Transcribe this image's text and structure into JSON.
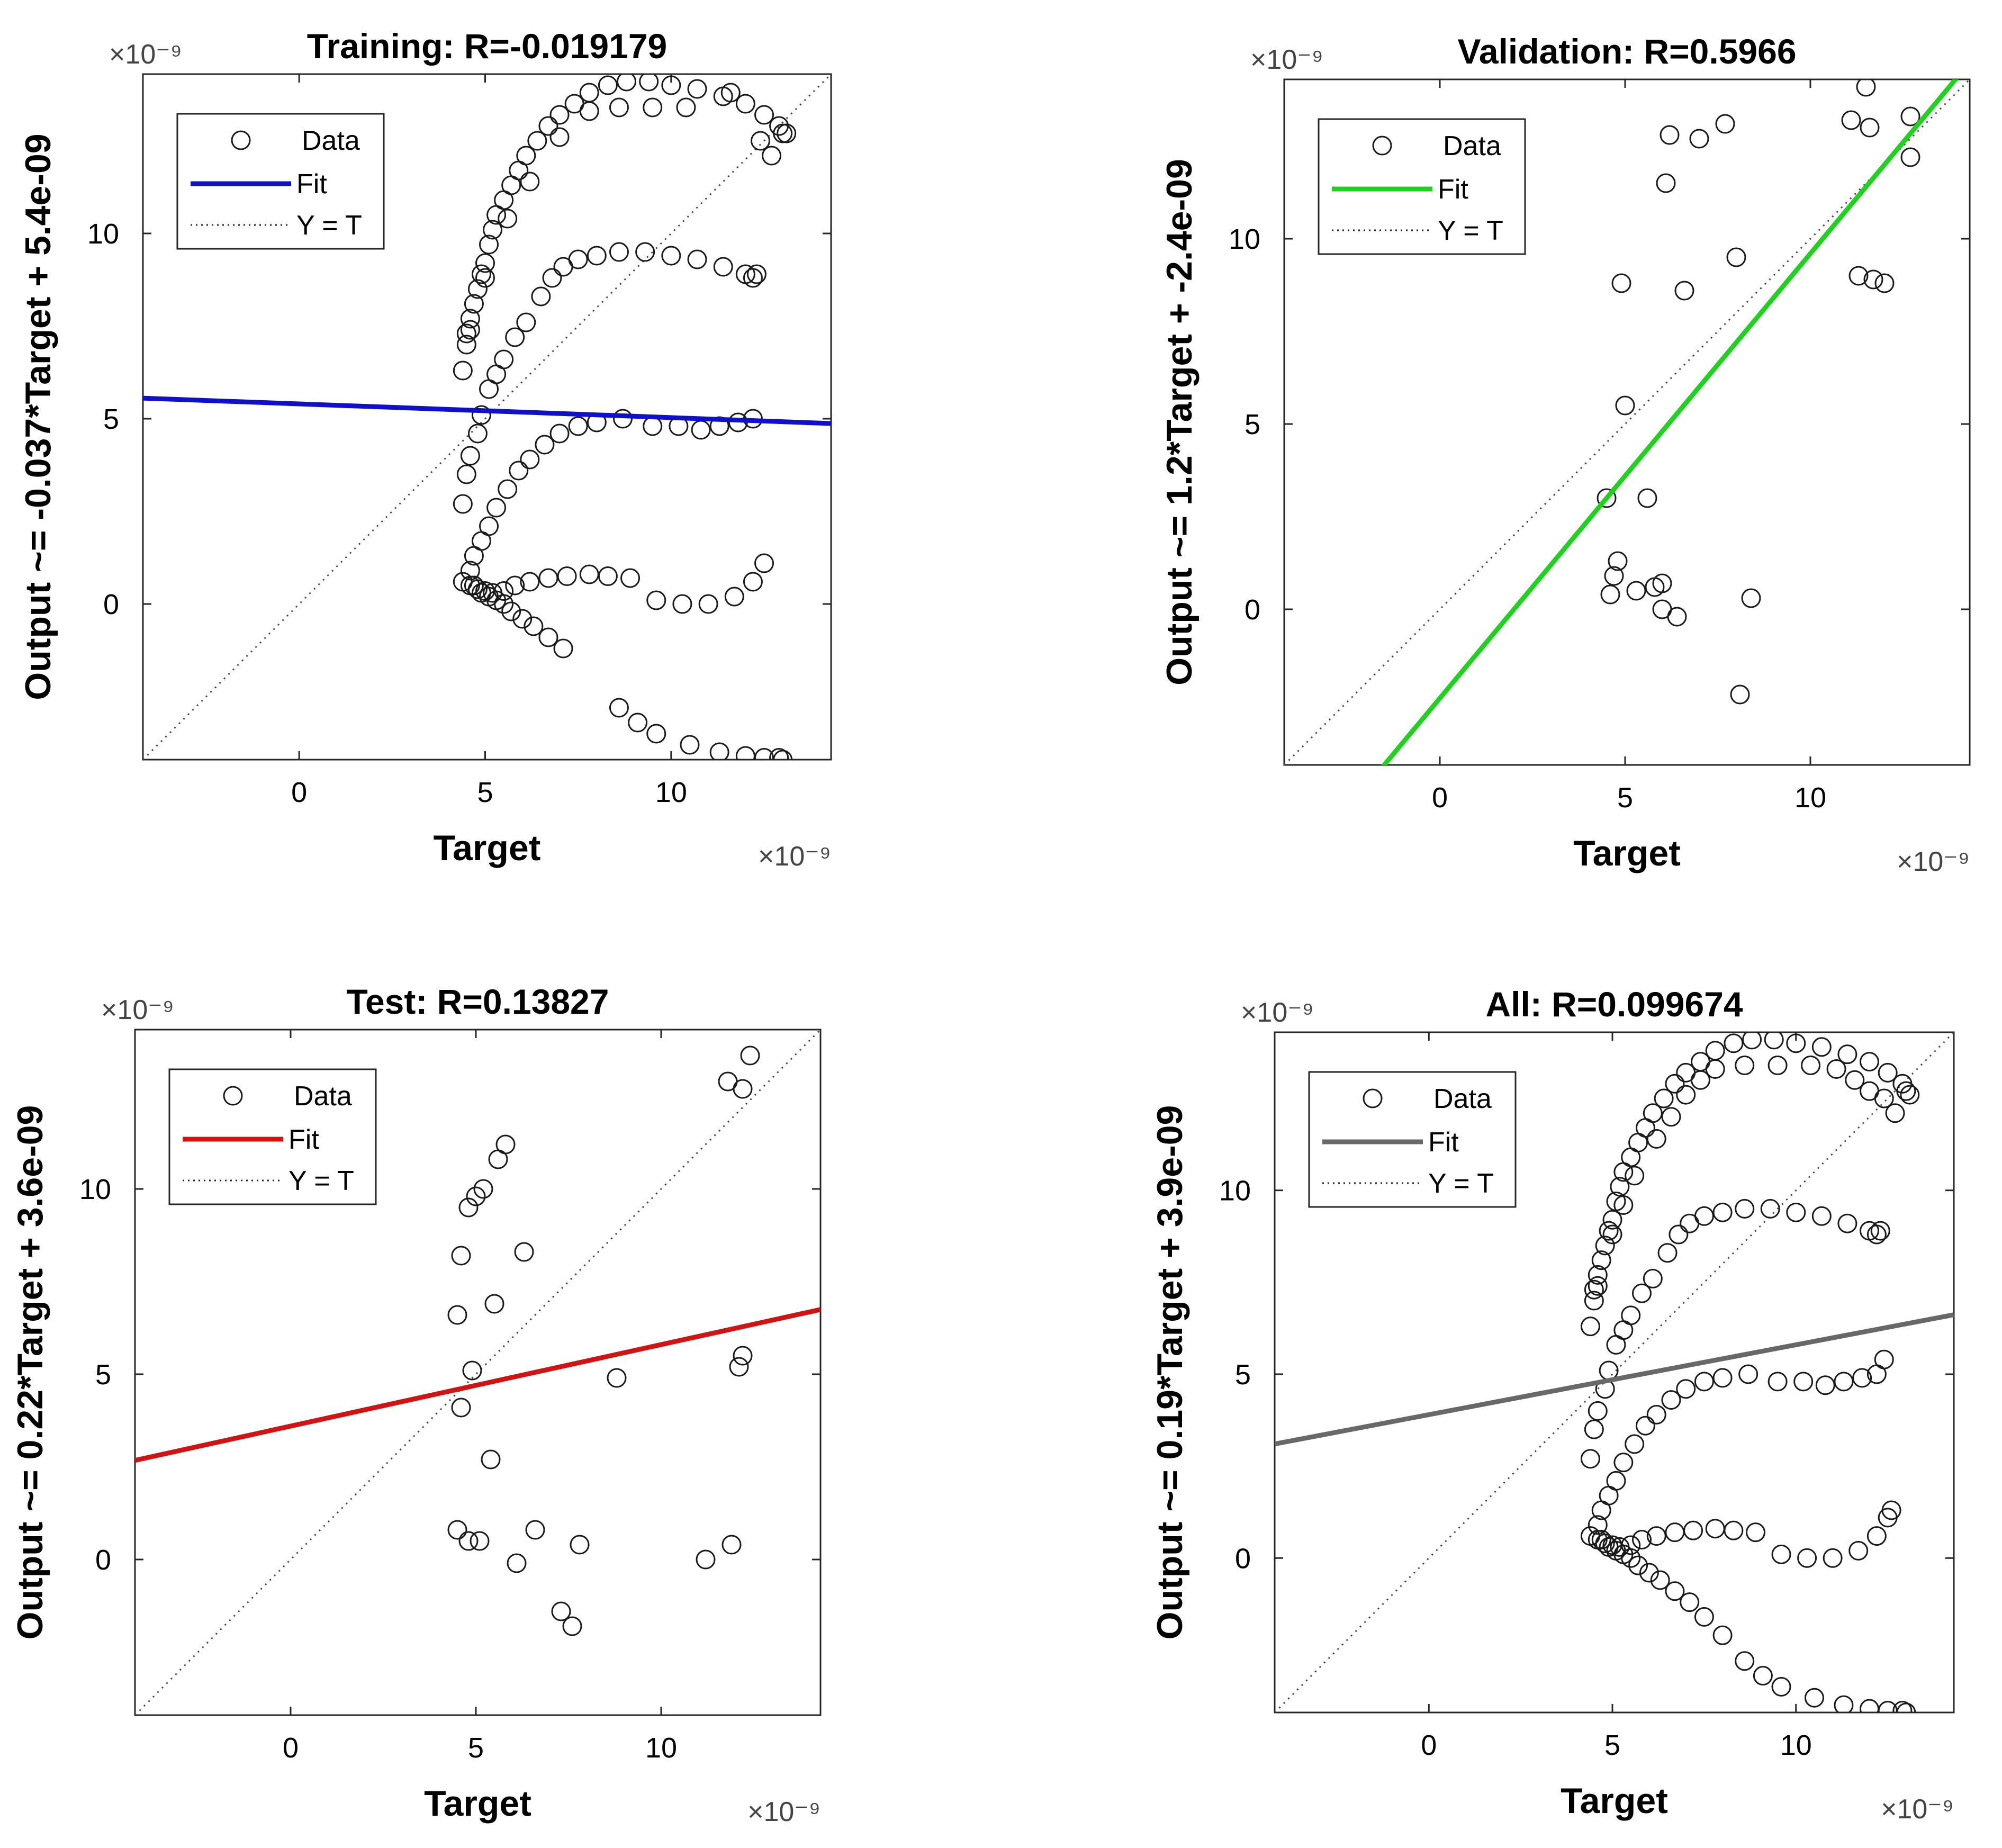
{
  "chart_data": [
    {
      "type": "scatter",
      "title": "Training: R=-0.019179",
      "xlabel": "Target",
      "ylabel": "Output ~= -0.037*Target + 5.4e-09",
      "x_exponent": "×10⁻⁹",
      "y_exponent": "×10⁻⁹",
      "xlim": [
        -4.2,
        14.3
      ],
      "ylim": [
        -4.2,
        14.3
      ],
      "xticks": [
        0,
        5,
        10
      ],
      "yticks": [
        0,
        5,
        10
      ],
      "grid": false,
      "legend_position": "top-left",
      "legend": {
        "data": "Data",
        "fit": "Fit",
        "identity": "Y = T"
      },
      "fit": {
        "slope": -0.037,
        "intercept": 5.4,
        "color": "#1010c8"
      },
      "identity_color": "#444444",
      "points": [
        [
          4.4,
          6.3
        ],
        [
          4.5,
          7.0
        ],
        [
          4.5,
          7.3
        ],
        [
          4.6,
          7.7
        ],
        [
          4.7,
          8.1
        ],
        [
          4.8,
          8.5
        ],
        [
          4.9,
          8.9
        ],
        [
          5.0,
          9.2
        ],
        [
          5.1,
          9.7
        ],
        [
          5.2,
          10.1
        ],
        [
          5.3,
          10.5
        ],
        [
          5.5,
          10.9
        ],
        [
          5.7,
          11.3
        ],
        [
          5.9,
          11.7
        ],
        [
          6.1,
          12.1
        ],
        [
          6.4,
          12.5
        ],
        [
          6.7,
          12.9
        ],
        [
          7.0,
          13.2
        ],
        [
          7.4,
          13.5
        ],
        [
          7.8,
          13.8
        ],
        [
          8.3,
          14.0
        ],
        [
          8.8,
          14.1
        ],
        [
          9.4,
          14.1
        ],
        [
          10.0,
          14.0
        ],
        [
          10.7,
          13.9
        ],
        [
          11.4,
          13.7
        ],
        [
          12.0,
          13.5
        ],
        [
          12.5,
          13.2
        ],
        [
          12.9,
          12.9
        ],
        [
          13.1,
          12.7
        ],
        [
          4.6,
          7.4
        ],
        [
          5.0,
          8.8
        ],
        [
          5.6,
          10.4
        ],
        [
          6.2,
          11.4
        ],
        [
          7.0,
          12.6
        ],
        [
          7.8,
          13.3
        ],
        [
          8.6,
          13.4
        ],
        [
          9.5,
          13.4
        ],
        [
          10.4,
          13.4
        ],
        [
          11.6,
          13.8
        ],
        [
          12.4,
          12.5
        ],
        [
          12.7,
          12.1
        ],
        [
          13.0,
          12.7
        ],
        [
          4.4,
          2.7
        ],
        [
          4.5,
          3.5
        ],
        [
          4.6,
          4.0
        ],
        [
          4.8,
          4.6
        ],
        [
          4.9,
          5.1
        ],
        [
          5.1,
          5.8
        ],
        [
          5.3,
          6.2
        ],
        [
          5.5,
          6.6
        ],
        [
          5.8,
          7.2
        ],
        [
          6.1,
          7.6
        ],
        [
          6.5,
          8.3
        ],
        [
          6.8,
          8.8
        ],
        [
          7.1,
          9.1
        ],
        [
          7.5,
          9.3
        ],
        [
          8.0,
          9.4
        ],
        [
          8.6,
          9.5
        ],
        [
          9.3,
          9.5
        ],
        [
          10.0,
          9.4
        ],
        [
          10.7,
          9.3
        ],
        [
          11.4,
          9.1
        ],
        [
          12.0,
          8.9
        ],
        [
          12.2,
          8.8
        ],
        [
          12.3,
          8.9
        ],
        [
          4.6,
          0.9
        ],
        [
          4.7,
          1.3
        ],
        [
          4.9,
          1.7
        ],
        [
          5.1,
          2.1
        ],
        [
          5.3,
          2.6
        ],
        [
          5.6,
          3.1
        ],
        [
          5.9,
          3.6
        ],
        [
          6.2,
          3.9
        ],
        [
          6.6,
          4.3
        ],
        [
          7.0,
          4.6
        ],
        [
          7.5,
          4.8
        ],
        [
          8.0,
          4.9
        ],
        [
          8.7,
          5.0
        ],
        [
          9.5,
          4.8
        ],
        [
          10.2,
          4.8
        ],
        [
          10.8,
          4.7
        ],
        [
          11.3,
          4.8
        ],
        [
          11.8,
          4.9
        ],
        [
          12.2,
          5.0
        ],
        [
          4.4,
          0.6
        ],
        [
          4.6,
          0.5
        ],
        [
          4.8,
          0.4
        ],
        [
          5.0,
          0.35
        ],
        [
          5.2,
          0.3
        ],
        [
          5.5,
          0.35
        ],
        [
          5.8,
          0.5
        ],
        [
          6.2,
          0.6
        ],
        [
          6.7,
          0.7
        ],
        [
          7.2,
          0.75
        ],
        [
          7.8,
          0.8
        ],
        [
          8.3,
          0.75
        ],
        [
          8.9,
          0.7
        ],
        [
          9.6,
          0.1
        ],
        [
          10.3,
          0.0
        ],
        [
          11.0,
          0.0
        ],
        [
          11.7,
          0.2
        ],
        [
          12.2,
          0.6
        ],
        [
          12.5,
          1.1
        ],
        [
          4.7,
          0.5
        ],
        [
          4.9,
          0.3
        ],
        [
          5.1,
          0.2
        ],
        [
          5.3,
          0.1
        ],
        [
          5.5,
          0.0
        ],
        [
          5.7,
          -0.2
        ],
        [
          6.0,
          -0.4
        ],
        [
          6.3,
          -0.6
        ],
        [
          6.7,
          -0.9
        ],
        [
          7.1,
          -1.2
        ],
        [
          8.6,
          -2.8
        ],
        [
          9.1,
          -3.2
        ],
        [
          9.6,
          -3.5
        ],
        [
          10.5,
          -3.8
        ],
        [
          11.3,
          -4.0
        ],
        [
          12.0,
          -4.1
        ],
        [
          12.5,
          -4.15
        ],
        [
          12.9,
          -4.15
        ],
        [
          13.0,
          -4.2
        ]
      ]
    },
    {
      "type": "scatter",
      "title": "Validation: R=0.5966",
      "xlabel": "Target",
      "ylabel": "Output ~= 1.2*Target + -2.4e-09",
      "x_exponent": "×10⁻⁹",
      "y_exponent": "×10⁻⁹",
      "xlim": [
        -4.2,
        14.3
      ],
      "ylim": [
        -4.2,
        14.3
      ],
      "xticks": [
        0,
        5,
        10
      ],
      "yticks": [
        0,
        5,
        10
      ],
      "grid": false,
      "legend_position": "top-left",
      "legend": {
        "data": "Data",
        "fit": "Fit",
        "identity": "Y = T"
      },
      "fit": {
        "slope": 1.2,
        "intercept": -2.4,
        "color": "#1ed21e"
      },
      "identity_color": "#444444",
      "points": [
        [
          4.5,
          3.0
        ],
        [
          4.6,
          0.4
        ],
        [
          4.7,
          0.9
        ],
        [
          4.8,
          1.3
        ],
        [
          4.9,
          8.8
        ],
        [
          5.0,
          5.5
        ],
        [
          5.3,
          0.5
        ],
        [
          5.6,
          3.0
        ],
        [
          5.8,
          0.6
        ],
        [
          6.0,
          0.7
        ],
        [
          6.0,
          0.0
        ],
        [
          6.1,
          11.5
        ],
        [
          6.2,
          12.8
        ],
        [
          6.4,
          -0.2
        ],
        [
          6.6,
          8.6
        ],
        [
          7.0,
          12.7
        ],
        [
          7.7,
          13.1
        ],
        [
          8.0,
          9.5
        ],
        [
          8.1,
          -2.3
        ],
        [
          8.4,
          0.3
        ],
        [
          11.1,
          13.2
        ],
        [
          11.3,
          9.0
        ],
        [
          11.5,
          14.1
        ],
        [
          11.6,
          13.0
        ],
        [
          11.7,
          8.9
        ],
        [
          12.0,
          8.8
        ],
        [
          12.7,
          13.3
        ],
        [
          12.7,
          12.2
        ]
      ]
    },
    {
      "type": "scatter",
      "title": "Test: R=0.13827",
      "xlabel": "Target",
      "ylabel": "Output ~= 0.22*Target + 3.6e-09",
      "x_exponent": "×10⁻⁹",
      "y_exponent": "×10⁻⁹",
      "xlim": [
        -4.2,
        14.3
      ],
      "ylim": [
        -4.2,
        14.3
      ],
      "xticks": [
        0,
        5,
        10
      ],
      "yticks": [
        0,
        5,
        10
      ],
      "grid": false,
      "legend_position": "top-left",
      "legend": {
        "data": "Data",
        "fit": "Fit",
        "identity": "Y = T"
      },
      "fit": {
        "slope": 0.22,
        "intercept": 3.6,
        "color": "#d01414"
      },
      "identity_color": "#444444",
      "points": [
        [
          4.5,
          0.8
        ],
        [
          4.5,
          6.6
        ],
        [
          4.6,
          8.2
        ],
        [
          4.6,
          4.1
        ],
        [
          4.8,
          0.5
        ],
        [
          4.8,
          9.5
        ],
        [
          4.9,
          5.1
        ],
        [
          5.0,
          9.8
        ],
        [
          5.1,
          0.5
        ],
        [
          5.2,
          10.0
        ],
        [
          5.4,
          2.7
        ],
        [
          5.5,
          6.9
        ],
        [
          5.6,
          10.8
        ],
        [
          5.8,
          11.2
        ],
        [
          6.1,
          -0.1
        ],
        [
          6.3,
          8.3
        ],
        [
          6.6,
          0.8
        ],
        [
          7.3,
          -1.4
        ],
        [
          7.6,
          -1.8
        ],
        [
          7.8,
          0.4
        ],
        [
          8.8,
          4.9
        ],
        [
          11.2,
          0.0
        ],
        [
          11.8,
          12.9
        ],
        [
          11.9,
          0.4
        ],
        [
          12.1,
          5.2
        ],
        [
          12.2,
          5.5
        ],
        [
          12.2,
          12.7
        ],
        [
          12.4,
          13.6
        ]
      ]
    },
    {
      "type": "scatter",
      "title": "All: R=0.099674",
      "xlabel": "Target",
      "ylabel": "Output ~= 0.19*Target + 3.9e-09",
      "x_exponent": "×10⁻⁹",
      "y_exponent": "×10⁻⁹",
      "xlim": [
        -4.2,
        14.3
      ],
      "ylim": [
        -4.2,
        14.3
      ],
      "xticks": [
        0,
        5,
        10
      ],
      "yticks": [
        0,
        5,
        10
      ],
      "grid": false,
      "legend_position": "top-left",
      "legend": {
        "data": "Data",
        "fit": "Fit",
        "identity": "Y = T"
      },
      "fit": {
        "slope": 0.19,
        "intercept": 3.9,
        "color": "#686868"
      },
      "identity_color": "#444444",
      "points": [
        [
          4.4,
          6.3
        ],
        [
          4.5,
          7.0
        ],
        [
          4.5,
          7.3
        ],
        [
          4.6,
          7.7
        ],
        [
          4.7,
          8.1
        ],
        [
          4.8,
          8.5
        ],
        [
          4.9,
          8.9
        ],
        [
          5.0,
          9.2
        ],
        [
          5.1,
          9.7
        ],
        [
          5.2,
          10.1
        ],
        [
          5.3,
          10.5
        ],
        [
          5.5,
          10.9
        ],
        [
          5.7,
          11.3
        ],
        [
          5.9,
          11.7
        ],
        [
          6.1,
          12.1
        ],
        [
          6.4,
          12.5
        ],
        [
          6.7,
          12.9
        ],
        [
          7.0,
          13.2
        ],
        [
          7.4,
          13.5
        ],
        [
          7.8,
          13.8
        ],
        [
          8.3,
          14.0
        ],
        [
          8.8,
          14.1
        ],
        [
          9.4,
          14.1
        ],
        [
          10.0,
          14.0
        ],
        [
          10.7,
          13.9
        ],
        [
          11.4,
          13.7
        ],
        [
          12.0,
          13.5
        ],
        [
          12.5,
          13.2
        ],
        [
          12.9,
          12.9
        ],
        [
          13.1,
          12.6
        ],
        [
          4.6,
          7.4
        ],
        [
          5.0,
          8.8
        ],
        [
          5.3,
          9.6
        ],
        [
          5.6,
          10.4
        ],
        [
          6.2,
          11.4
        ],
        [
          6.6,
          12.0
        ],
        [
          7.0,
          12.6
        ],
        [
          7.4,
          13.0
        ],
        [
          7.8,
          13.3
        ],
        [
          8.6,
          13.4
        ],
        [
          9.5,
          13.4
        ],
        [
          10.4,
          13.4
        ],
        [
          11.1,
          13.3
        ],
        [
          11.6,
          13.0
        ],
        [
          12.0,
          12.7
        ],
        [
          12.4,
          12.5
        ],
        [
          12.7,
          12.1
        ],
        [
          13.0,
          12.7
        ],
        [
          4.4,
          2.7
        ],
        [
          4.5,
          3.5
        ],
        [
          4.6,
          4.0
        ],
        [
          4.8,
          4.6
        ],
        [
          4.9,
          5.1
        ],
        [
          5.1,
          5.8
        ],
        [
          5.3,
          6.2
        ],
        [
          5.5,
          6.6
        ],
        [
          5.8,
          7.2
        ],
        [
          6.1,
          7.6
        ],
        [
          6.5,
          8.3
        ],
        [
          6.8,
          8.8
        ],
        [
          7.1,
          9.1
        ],
        [
          7.5,
          9.3
        ],
        [
          8.0,
          9.4
        ],
        [
          8.6,
          9.5
        ],
        [
          9.3,
          9.5
        ],
        [
          10.0,
          9.4
        ],
        [
          10.7,
          9.3
        ],
        [
          11.4,
          9.1
        ],
        [
          12.0,
          8.9
        ],
        [
          12.2,
          8.8
        ],
        [
          12.3,
          8.9
        ],
        [
          4.6,
          0.9
        ],
        [
          4.7,
          1.3
        ],
        [
          4.9,
          1.7
        ],
        [
          5.1,
          2.1
        ],
        [
          5.3,
          2.6
        ],
        [
          5.6,
          3.1
        ],
        [
          5.9,
          3.6
        ],
        [
          6.2,
          3.9
        ],
        [
          6.6,
          4.3
        ],
        [
          7.0,
          4.6
        ],
        [
          7.5,
          4.8
        ],
        [
          8.0,
          4.9
        ],
        [
          8.7,
          5.0
        ],
        [
          9.5,
          4.8
        ],
        [
          10.2,
          4.8
        ],
        [
          10.8,
          4.7
        ],
        [
          11.3,
          4.8
        ],
        [
          11.8,
          4.9
        ],
        [
          12.2,
          5.0
        ],
        [
          12.4,
          5.4
        ],
        [
          4.4,
          0.6
        ],
        [
          4.6,
          0.5
        ],
        [
          4.8,
          0.4
        ],
        [
          5.0,
          0.35
        ],
        [
          5.2,
          0.3
        ],
        [
          5.5,
          0.35
        ],
        [
          5.8,
          0.5
        ],
        [
          6.2,
          0.6
        ],
        [
          6.7,
          0.7
        ],
        [
          7.2,
          0.75
        ],
        [
          7.8,
          0.8
        ],
        [
          8.3,
          0.75
        ],
        [
          8.9,
          0.7
        ],
        [
          9.6,
          0.1
        ],
        [
          10.3,
          0.0
        ],
        [
          11.0,
          0.0
        ],
        [
          11.7,
          0.2
        ],
        [
          12.2,
          0.6
        ],
        [
          12.5,
          1.1
        ],
        [
          12.6,
          1.3
        ],
        [
          4.7,
          0.5
        ],
        [
          4.9,
          0.3
        ],
        [
          5.1,
          0.2
        ],
        [
          5.3,
          0.1
        ],
        [
          5.5,
          0.0
        ],
        [
          5.7,
          -0.2
        ],
        [
          6.0,
          -0.4
        ],
        [
          6.3,
          -0.6
        ],
        [
          6.7,
          -0.9
        ],
        [
          7.1,
          -1.2
        ],
        [
          7.5,
          -1.6
        ],
        [
          8.0,
          -2.1
        ],
        [
          8.6,
          -2.8
        ],
        [
          9.1,
          -3.2
        ],
        [
          9.6,
          -3.5
        ],
        [
          10.5,
          -3.8
        ],
        [
          11.3,
          -4.0
        ],
        [
          12.0,
          -4.1
        ],
        [
          12.5,
          -4.15
        ],
        [
          12.9,
          -4.15
        ],
        [
          13.0,
          -4.2
        ]
      ]
    }
  ]
}
